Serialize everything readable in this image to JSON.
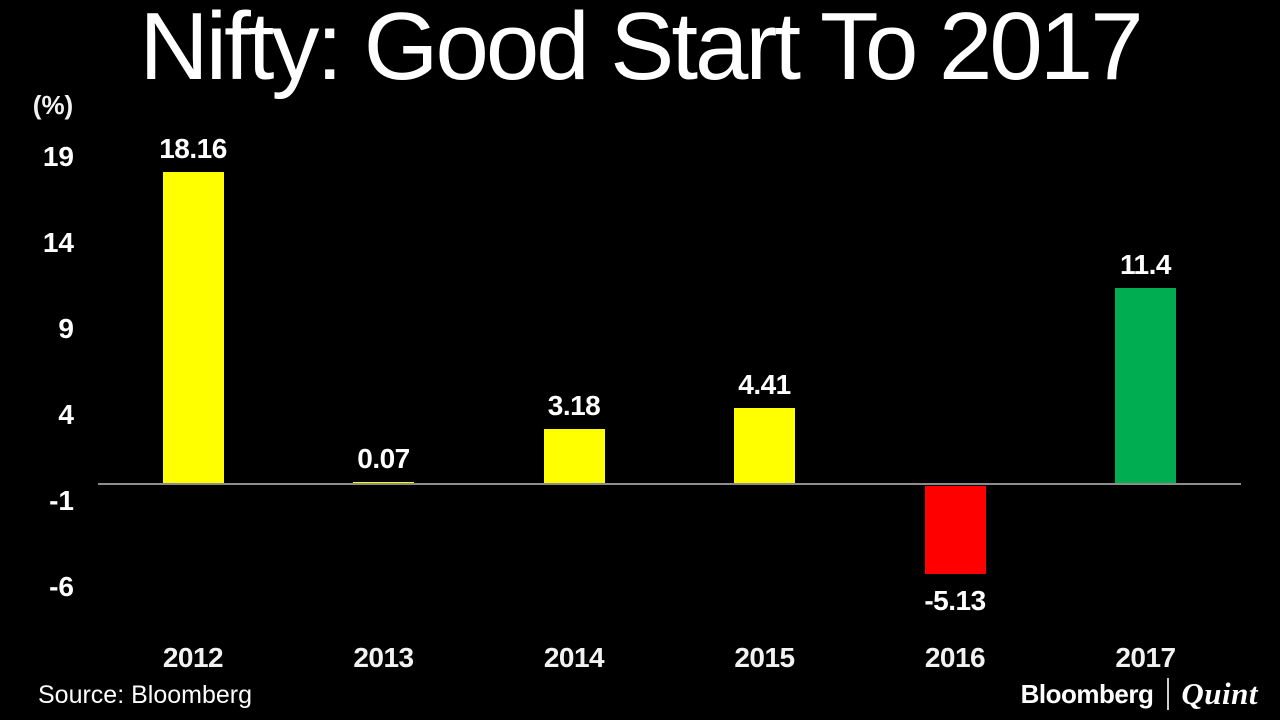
{
  "title": "Nifty: Good Start To 2017",
  "source": "Source: Bloomberg",
  "logo": {
    "bloomberg": "Bloomberg",
    "quint": "Quint"
  },
  "chart_data": {
    "type": "bar",
    "title": "Nifty: Good Start To 2017",
    "ylabel": "(%)",
    "xlabel": "",
    "categories": [
      "2012",
      "2013",
      "2014",
      "2015",
      "2016",
      "2017"
    ],
    "values": [
      18.16,
      0.07,
      3.18,
      4.41,
      -5.13,
      11.4
    ],
    "data_labels": [
      "18.16",
      "0.07",
      "3.18",
      "4.41",
      "-5.13",
      "11.4"
    ],
    "bar_colors": [
      "#ffff00",
      "#ffff00",
      "#ffff00",
      "#ffff00",
      "#ff0000",
      "#00ad50"
    ],
    "yticks": [
      19,
      14,
      9,
      4,
      -1,
      -6
    ],
    "ylim": [
      -8.5,
      21.5
    ],
    "grid": false,
    "legend": false,
    "background_color": "#000000",
    "text_color": "#ffffff",
    "axis_line_color": "#8c8c8c"
  }
}
